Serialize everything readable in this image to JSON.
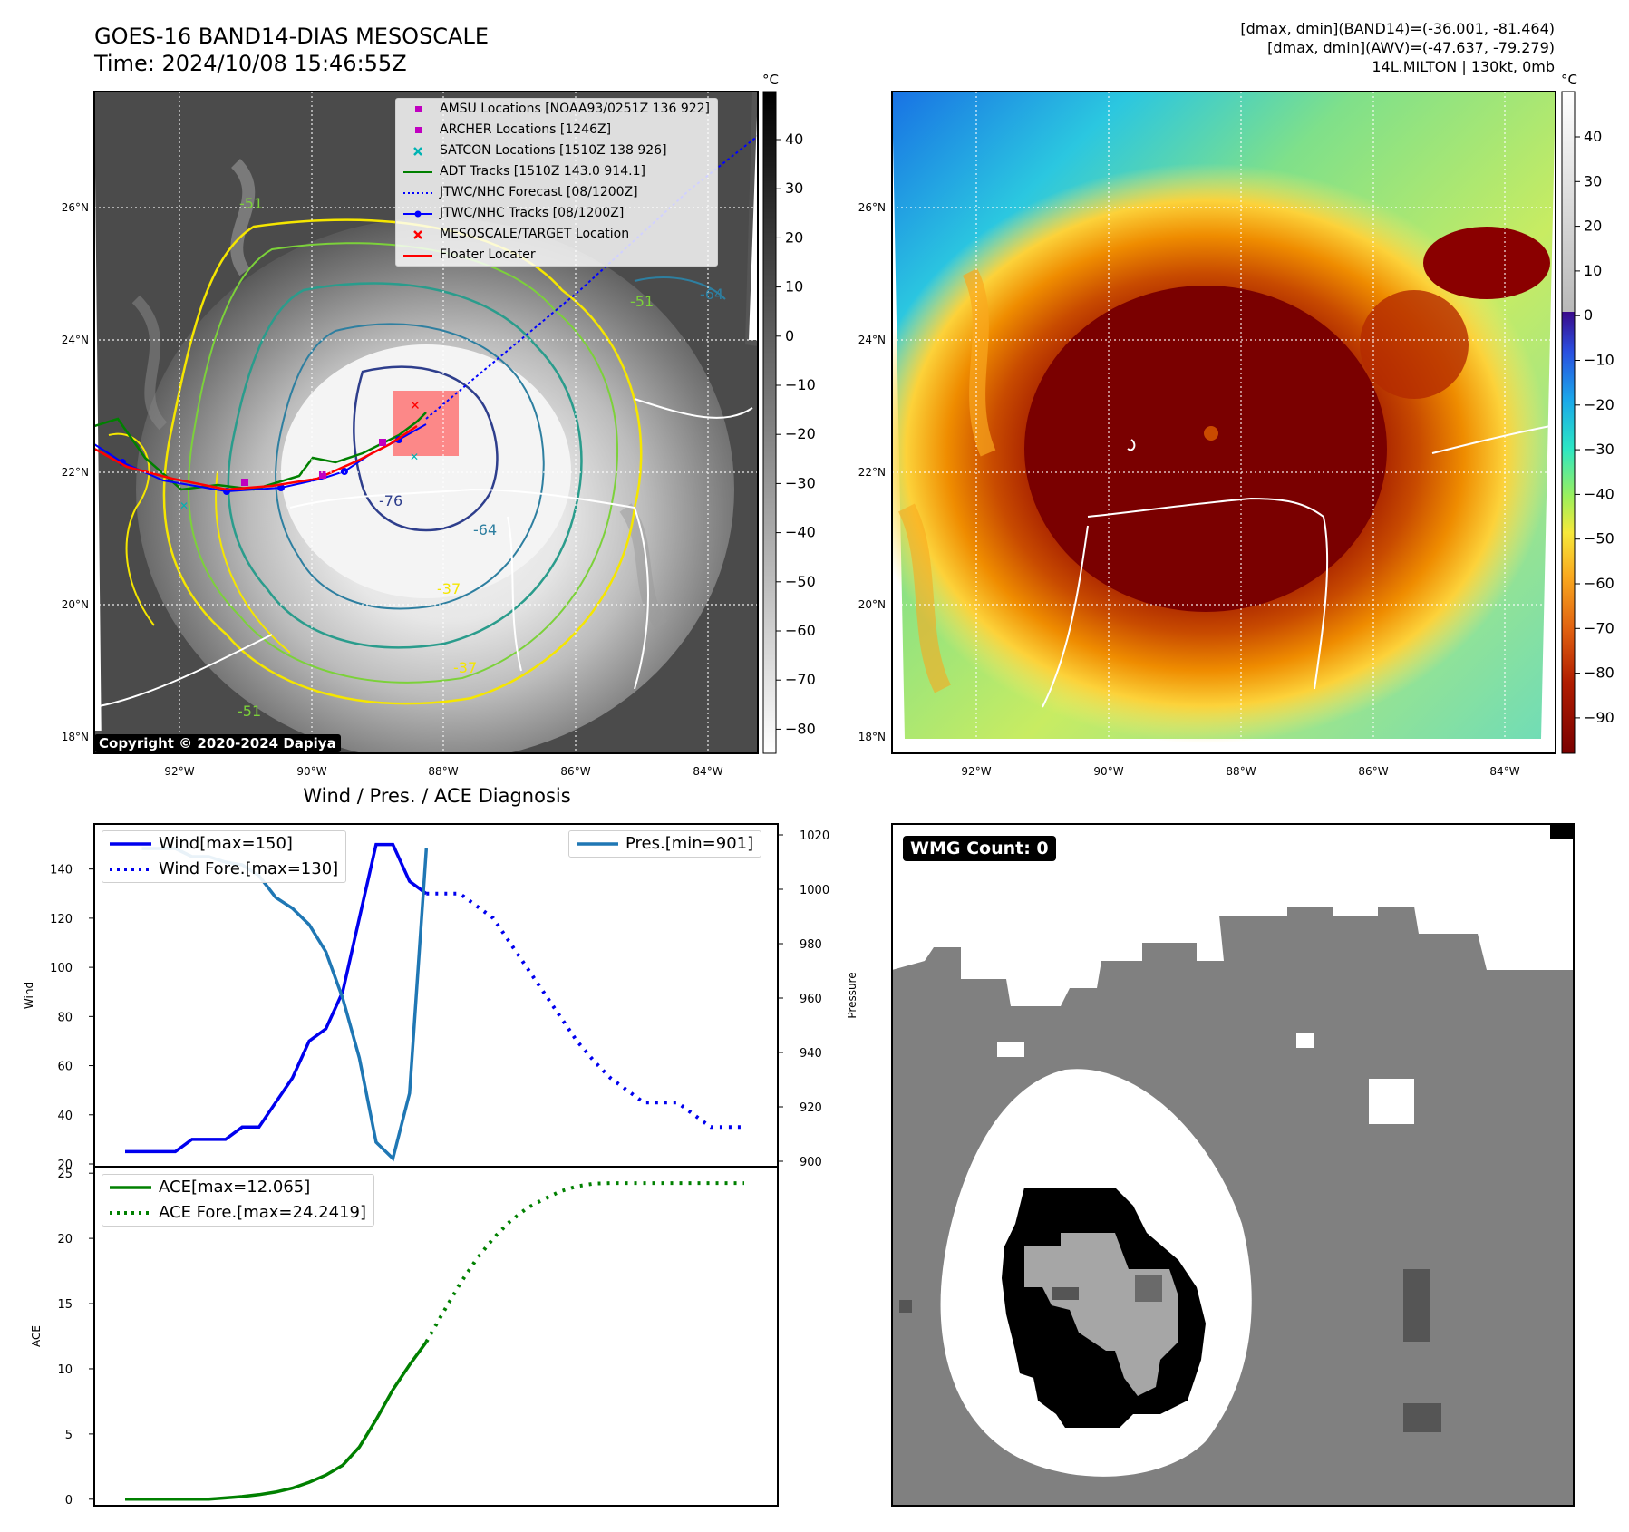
{
  "header": {
    "title_line1": "GOES-16 BAND14-DIAS MESOSCALE",
    "title_line2": "Time: 2024/10/08 15:46:55Z",
    "info_line1": "[dmax, dmin](BAND14)=(-36.001, -81.464)",
    "info_line2": "[dmax, dmin](AWV)=(-47.637, -79.279)",
    "info_line3": "14L.MILTON | 130kt, 0mb"
  },
  "map": {
    "lat_ticks": [
      "26°N",
      "24°N",
      "22°N",
      "20°N",
      "18°N"
    ],
    "lon_ticks": [
      "92°W",
      "90°W",
      "88°W",
      "86°W",
      "84°W"
    ],
    "copyright": "Copyright © 2020-2024 Dapiya",
    "contour_labels": [
      "-64",
      "-76",
      "-64",
      "-51",
      "-51",
      "-37",
      "-51",
      "-37"
    ],
    "legend": [
      {
        "label": "AMSU Locations [NOAA93/0251Z 136 922]",
        "color": "#c000c0",
        "kind": "square"
      },
      {
        "label": "ARCHER Locations [1246Z]",
        "color": "#c000c0",
        "kind": "square"
      },
      {
        "label": "SATCON Locations [1510Z 138 926]",
        "color": "#00b3b3",
        "kind": "x"
      },
      {
        "label": "ADT Tracks [1510Z 143.0 914.1]",
        "color": "#008000",
        "kind": "line"
      },
      {
        "label": "JTWC/NHC Forecast [08/1200Z]",
        "color": "#0000ff",
        "kind": "dotted"
      },
      {
        "label": "JTWC/NHC Tracks [08/1200Z]",
        "color": "#0000ff",
        "kind": "line-dot"
      },
      {
        "label": "MESOSCALE/TARGET Location",
        "color": "#ff0000",
        "kind": "x"
      },
      {
        "label": "Floater Locater",
        "color": "#ff0000",
        "kind": "line"
      }
    ]
  },
  "colorbar_gray": {
    "unit": "°C",
    "ticks": [
      "40",
      "30",
      "20",
      "10",
      "0",
      "−10",
      "−20",
      "−30",
      "−40",
      "−50",
      "−60",
      "−70",
      "−80"
    ]
  },
  "colorbar_color": {
    "unit": "°C",
    "ticks": [
      "40",
      "30",
      "20",
      "10",
      "0",
      "−10",
      "−20",
      "−30",
      "−40",
      "−50",
      "−60",
      "−70",
      "−80",
      "−90"
    ]
  },
  "wmg": {
    "badge": "WMG Count: 0"
  },
  "chart_data": [
    {
      "type": "line",
      "title": "Wind / Pres. / ACE Diagnosis",
      "ylabel": "Wind",
      "ylim": [
        20,
        155
      ],
      "x": [
        0,
        1,
        2,
        3,
        4,
        5,
        6,
        7,
        8,
        9,
        10,
        11,
        12,
        13,
        14,
        15,
        16,
        17,
        18
      ],
      "series": [
        {
          "name": "Wind[max=150]",
          "style": "solid",
          "color": "#0000ee",
          "values": [
            25,
            25,
            25,
            25,
            30,
            30,
            30,
            35,
            35,
            45,
            55,
            70,
            75,
            90,
            120,
            150,
            150,
            135,
            130
          ]
        },
        {
          "name": "Wind Fore.[max=130]",
          "style": "dotted",
          "color": "#0000ee",
          "x": [
            18,
            19,
            20,
            21,
            22,
            23,
            24,
            25,
            26,
            27,
            28,
            29,
            30,
            31,
            32,
            33,
            34,
            35,
            36,
            37
          ],
          "values": [
            130,
            130,
            130,
            125,
            120,
            110,
            100,
            90,
            80,
            70,
            62,
            55,
            50,
            45,
            45,
            45,
            40,
            35,
            35,
            35
          ]
        }
      ],
      "yticks": [
        20,
        40,
        60,
        80,
        100,
        120,
        140
      ]
    },
    {
      "type": "line",
      "ylabel": "Pressure",
      "ylim": [
        899,
        1021
      ],
      "series": [
        {
          "name": "Pres.[min=901]",
          "style": "solid",
          "color": "#1f77b4",
          "x": [
            1,
            2,
            3,
            4,
            5,
            6,
            7,
            8,
            9,
            10,
            11,
            12,
            13,
            14,
            15,
            16,
            17,
            18
          ],
          "values": [
            1015,
            1015,
            1015,
            1012,
            1012,
            1010,
            1009,
            1005,
            997,
            993,
            987,
            977,
            960,
            938,
            907,
            901,
            925,
            1015
          ]
        }
      ],
      "yticks": [
        900,
        920,
        940,
        960,
        980,
        1000,
        1020
      ]
    },
    {
      "type": "line",
      "ylabel": "ACE",
      "ylim": [
        -0.5,
        25.5
      ],
      "series": [
        {
          "name": "ACE[max=12.065]",
          "style": "solid",
          "color": "#008000",
          "x": [
            0,
            1,
            2,
            3,
            4,
            5,
            6,
            7,
            8,
            9,
            10,
            11,
            12,
            13,
            14,
            15,
            16,
            17,
            18
          ],
          "values": [
            0,
            0,
            0,
            0,
            0,
            0,
            0.1,
            0.2,
            0.35,
            0.55,
            0.85,
            1.3,
            1.85,
            2.6,
            4.0,
            6.1,
            8.4,
            10.3,
            12.065
          ]
        },
        {
          "name": "ACE Fore.[max=24.2419]",
          "style": "dotted",
          "color": "#008000",
          "x": [
            18,
            19,
            20,
            21,
            22,
            23,
            24,
            25,
            26,
            27,
            28,
            29,
            30,
            31,
            32,
            33,
            34,
            35,
            36,
            37
          ],
          "values": [
            12.065,
            14.3,
            16.5,
            18.4,
            20.0,
            21.3,
            22.3,
            23.0,
            23.6,
            24.0,
            24.2,
            24.2419,
            24.2419,
            24.2419,
            24.2419,
            24.2419,
            24.2419,
            24.2419,
            24.2419,
            24.2419
          ]
        }
      ],
      "yticks": [
        0,
        5,
        10,
        15,
        20,
        25
      ]
    }
  ]
}
